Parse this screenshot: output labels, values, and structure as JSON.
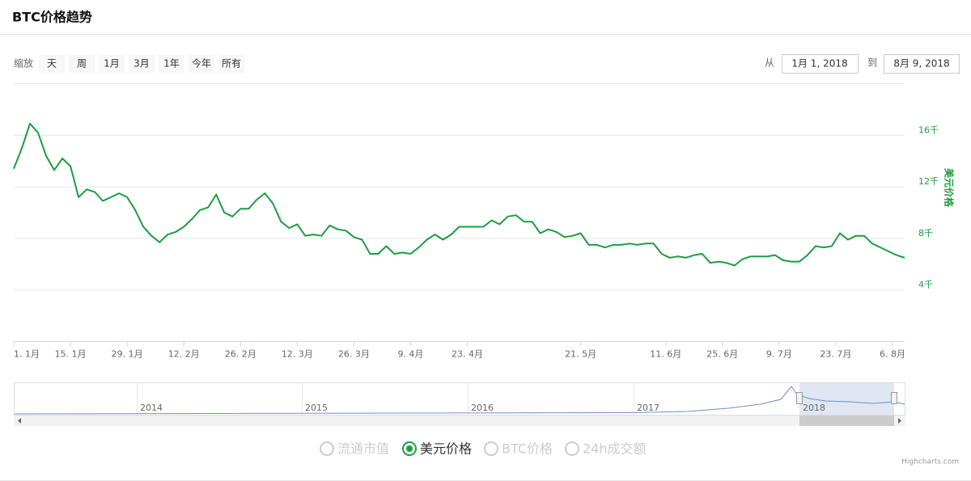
{
  "header": {
    "title": "BTC价格趋势"
  },
  "range_selector": {
    "label": "缩放",
    "buttons": [
      "天",
      "周",
      "1月",
      "3月",
      "1年",
      "今年",
      "所有"
    ],
    "from_label": "从",
    "from": "1月 1, 2018",
    "to_label": "到",
    "to": "8月 9, 2018"
  },
  "chart_data": {
    "type": "line",
    "x": [
      "2018-01-01",
      "2018-01-03",
      "2018-01-05",
      "2018-01-07",
      "2018-01-09",
      "2018-01-11",
      "2018-01-13",
      "2018-01-15",
      "2018-01-17",
      "2018-01-19",
      "2018-01-21",
      "2018-01-23",
      "2018-01-25",
      "2018-01-27",
      "2018-01-29",
      "2018-01-31",
      "2018-02-02",
      "2018-02-04",
      "2018-02-06",
      "2018-02-08",
      "2018-02-10",
      "2018-02-12",
      "2018-02-14",
      "2018-02-16",
      "2018-02-18",
      "2018-02-20",
      "2018-02-22",
      "2018-02-24",
      "2018-02-26",
      "2018-02-28",
      "2018-03-02",
      "2018-03-04",
      "2018-03-06",
      "2018-03-08",
      "2018-03-10",
      "2018-03-12",
      "2018-03-14",
      "2018-03-16",
      "2018-03-18",
      "2018-03-20",
      "2018-03-22",
      "2018-03-24",
      "2018-03-26",
      "2018-03-28",
      "2018-03-30",
      "2018-04-01",
      "2018-04-03",
      "2018-04-05",
      "2018-04-07",
      "2018-04-09",
      "2018-04-11",
      "2018-04-13",
      "2018-04-15",
      "2018-04-17",
      "2018-04-19",
      "2018-04-21",
      "2018-04-23",
      "2018-04-25",
      "2018-04-27",
      "2018-04-29",
      "2018-05-01",
      "2018-05-03",
      "2018-05-05",
      "2018-05-07",
      "2018-05-09",
      "2018-05-11",
      "2018-05-13",
      "2018-05-15",
      "2018-05-17",
      "2018-05-19",
      "2018-05-21",
      "2018-05-23",
      "2018-05-25",
      "2018-05-27",
      "2018-05-29",
      "2018-05-31",
      "2018-06-02",
      "2018-06-04",
      "2018-06-06",
      "2018-06-08",
      "2018-06-10",
      "2018-06-12",
      "2018-06-14",
      "2018-06-16",
      "2018-06-18",
      "2018-06-20",
      "2018-06-22",
      "2018-06-24",
      "2018-06-26",
      "2018-06-28",
      "2018-06-30",
      "2018-07-02",
      "2018-07-04",
      "2018-07-06",
      "2018-07-08",
      "2018-07-10",
      "2018-07-12",
      "2018-07-14",
      "2018-07-16",
      "2018-07-18",
      "2018-07-20",
      "2018-07-22",
      "2018-07-24",
      "2018-07-26",
      "2018-07-28",
      "2018-07-30",
      "2018-08-01",
      "2018-08-03",
      "2018-08-05",
      "2018-08-07",
      "2018-08-09"
    ],
    "series": [
      {
        "name": "美元价格",
        "color": "#1a9e3f",
        "values": [
          13400,
          15000,
          16900,
          16200,
          14400,
          13300,
          14200,
          13600,
          11200,
          11800,
          11600,
          10900,
          11200,
          11500,
          11200,
          10200,
          8900,
          8200,
          7700,
          8300,
          8500,
          8900,
          9500,
          10200,
          10400,
          11400,
          10000,
          9700,
          10300,
          10300,
          11000,
          11500,
          10700,
          9300,
          8800,
          9100,
          8200,
          8300,
          8200,
          9000,
          8700,
          8600,
          8100,
          7900,
          6800,
          6800,
          7400,
          6800,
          6900,
          6800,
          7300,
          7900,
          8300,
          7900,
          8300,
          8900,
          8900,
          8900,
          8900,
          9400,
          9100,
          9700,
          9800,
          9300,
          9300,
          8400,
          8700,
          8500,
          8100,
          8200,
          8400,
          7500,
          7500,
          7300,
          7500,
          7500,
          7600,
          7500,
          7600,
          7600,
          6800,
          6500,
          6600,
          6500,
          6700,
          6800,
          6100,
          6200,
          6100,
          5900,
          6400,
          6600,
          6600,
          6600,
          6700,
          6300,
          6200,
          6200,
          6700,
          7400,
          7300,
          7400,
          8400,
          7900,
          8200,
          8200,
          7600,
          7300,
          7000,
          6700,
          6500
        ]
      }
    ],
    "xlim": [
      "2018-01-01",
      "2018-08-09"
    ],
    "xticks": [
      {
        "value": "2018-01-01",
        "label": "1. 1月"
      },
      {
        "value": "2018-01-15",
        "label": "15. 1月"
      },
      {
        "value": "2018-01-29",
        "label": "29. 1月"
      },
      {
        "value": "2018-02-12",
        "label": "12. 2月"
      },
      {
        "value": "2018-02-26",
        "label": "26. 2月"
      },
      {
        "value": "2018-03-12",
        "label": "12. 3月"
      },
      {
        "value": "2018-03-26",
        "label": "26. 3月"
      },
      {
        "value": "2018-04-09",
        "label": "9. 4月"
      },
      {
        "value": "2018-04-23",
        "label": "23. 4月"
      },
      {
        "value": "2018-05-21",
        "label": "21. 5月"
      },
      {
        "value": "2018-06-11",
        "label": "11. 6月"
      },
      {
        "value": "2018-06-25",
        "label": "25. 6月"
      },
      {
        "value": "2018-07-09",
        "label": "9. 7月"
      },
      {
        "value": "2018-07-23",
        "label": "23. 7月"
      },
      {
        "value": "2018-08-06",
        "label": "6. 8月"
      }
    ],
    "ylim": [
      0,
      20000
    ],
    "yticks": [
      {
        "value": 4000,
        "label": "4千"
      },
      {
        "value": 8000,
        "label": "8千"
      },
      {
        "value": 12000,
        "label": "12千"
      },
      {
        "value": 16000,
        "label": "16千"
      }
    ],
    "grid": true
  },
  "navigator": {
    "labels": [
      "2014",
      "2015",
      "2016",
      "2017",
      "2018"
    ]
  },
  "legend": {
    "items": [
      {
        "name": "流通市值",
        "selected": false
      },
      {
        "name": "美元价格",
        "selected": true
      },
      {
        "name": "BTC价格",
        "selected": false
      },
      {
        "name": "24h成交额",
        "selected": false
      }
    ]
  },
  "credits": "Highcharts.com"
}
